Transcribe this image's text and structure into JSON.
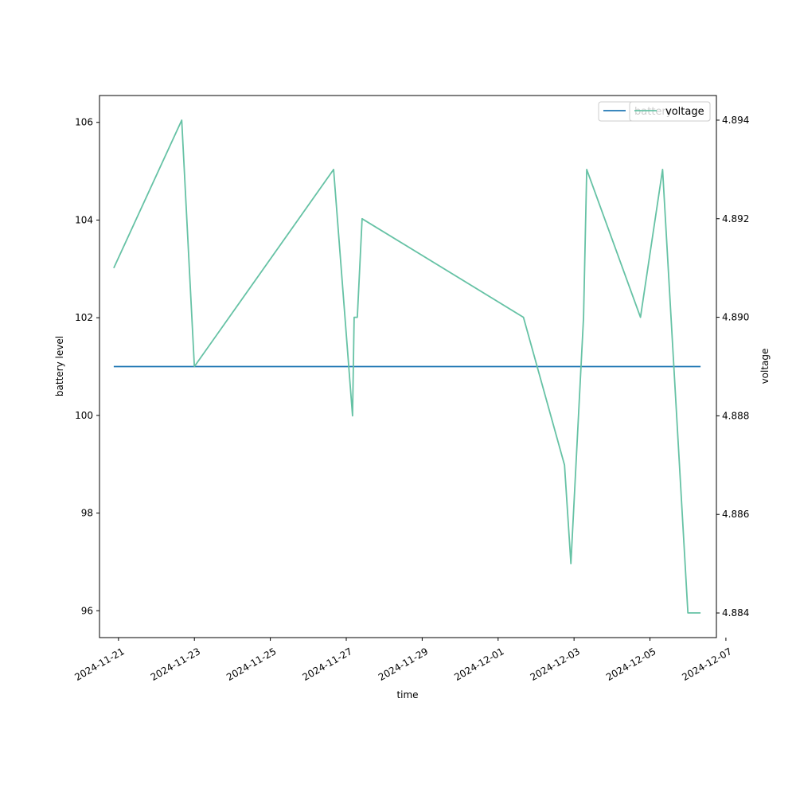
{
  "chart_data": {
    "type": "line",
    "xlabel": "time",
    "ylabel": "battery level",
    "y2label": "voltage",
    "x_range": [
      "2024-11-20T12:00",
      "2024-12-06T18:00"
    ],
    "ylim": [
      95.45,
      106.55
    ],
    "y2lim": [
      4.8835,
      4.8945
    ],
    "x_ticks": [
      "2024-11-21",
      "2024-11-23",
      "2024-11-25",
      "2024-11-27",
      "2024-11-29",
      "2024-12-01",
      "2024-12-03",
      "2024-12-05",
      "2024-12-07"
    ],
    "y_ticks": [
      96,
      98,
      100,
      102,
      104,
      106
    ],
    "y2_ticks": [
      "4.884",
      "4.886",
      "4.888",
      "4.890",
      "4.892",
      "4.894"
    ],
    "legend_position": "top-right",
    "grid": false,
    "series": [
      {
        "name": "battery",
        "axis": "left",
        "color": "#1f77b4",
        "points": [
          {
            "t": "2024-11-20T21:00",
            "v": 101
          },
          {
            "t": "2024-12-06T08:00",
            "v": 101
          }
        ]
      },
      {
        "name": "voltage",
        "axis": "right",
        "color": "#66c2a5",
        "points": [
          {
            "t": "2024-11-20T21:00",
            "v": 4.891
          },
          {
            "t": "2024-11-22T16:00",
            "v": 4.894
          },
          {
            "t": "2024-11-23T00:00",
            "v": 4.889
          },
          {
            "t": "2024-11-26T16:00",
            "v": 4.893
          },
          {
            "t": "2024-11-27T04:00",
            "v": 4.888
          },
          {
            "t": "2024-11-27T05:00",
            "v": 4.89
          },
          {
            "t": "2024-11-27T07:00",
            "v": 4.89
          },
          {
            "t": "2024-11-27T10:00",
            "v": 4.892
          },
          {
            "t": "2024-12-01T16:00",
            "v": 4.89
          },
          {
            "t": "2024-12-02T18:00",
            "v": 4.887
          },
          {
            "t": "2024-12-02T22:00",
            "v": 4.885
          },
          {
            "t": "2024-12-03T06:00",
            "v": 4.89
          },
          {
            "t": "2024-12-03T08:00",
            "v": 4.893
          },
          {
            "t": "2024-12-04T18:00",
            "v": 4.89
          },
          {
            "t": "2024-12-05T08:00",
            "v": 4.893
          },
          {
            "t": "2024-12-06T00:00",
            "v": 4.884
          },
          {
            "t": "2024-12-06T08:00",
            "v": 4.884
          }
        ]
      }
    ]
  }
}
